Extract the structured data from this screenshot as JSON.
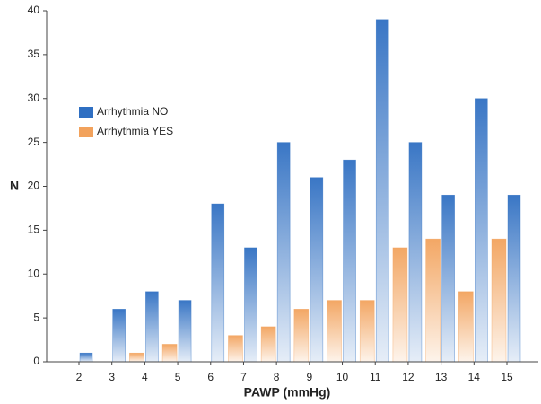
{
  "chart_data": {
    "type": "bar",
    "x_label": "PAWP (mmHg)",
    "y_label": "N",
    "categories": [
      "2",
      "3",
      "4",
      "5",
      "6",
      "7",
      "8",
      "9",
      "10",
      "11",
      "12",
      "13",
      "14",
      "15"
    ],
    "series": [
      {
        "name": "Arrhythmia NO",
        "color": "#2f6fc2",
        "values": [
          1,
          6,
          8,
          7,
          18,
          13,
          25,
          21,
          23,
          39,
          25,
          19,
          30,
          19
        ]
      },
      {
        "name": "Arrhythmia YES",
        "color": "#f2a25c",
        "values": [
          0,
          0,
          1,
          2,
          0,
          3,
          4,
          6,
          7,
          7,
          13,
          14,
          8,
          14
        ]
      }
    ],
    "ylim": [
      0,
      40
    ],
    "yticks": [
      0,
      5,
      10,
      15,
      20,
      25,
      30,
      35,
      40
    ]
  }
}
